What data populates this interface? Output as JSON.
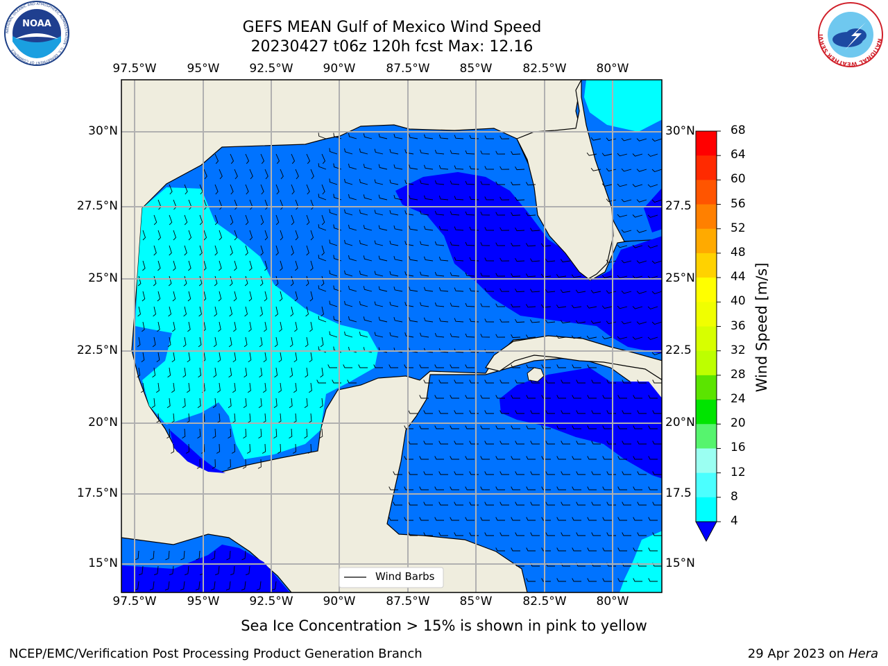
{
  "header": {
    "title_line1": "GEFS MEAN Gulf of Mexico Wind Speed",
    "title_line2": "20230427 t06z 120h fcst   Max: 12.16"
  },
  "logos": {
    "noaa_text": "NOAA",
    "noaa_ring_text": "NATIONAL OCEANIC AND ATMOSPHERIC ADMINISTRATION · U.S. DEPARTMENT OF COMMERCE",
    "nws_ring_text": "NATIONAL WEATHER SERVICE"
  },
  "map": {
    "lon_labels": [
      "97.5°W",
      "95°W",
      "92.5°W",
      "90°W",
      "87.5°W",
      "85°W",
      "82.5°W",
      "80°W"
    ],
    "lat_labels_left": [
      "30°N",
      "27.5°N",
      "25°N",
      "22.5°N",
      "20°N",
      "17.5°N",
      "15°N"
    ],
    "lat_labels_right": [
      "30°N",
      "27.5",
      "25°N",
      "22.5",
      "20°N",
      "17.5",
      "15°N"
    ],
    "legend_label": "Wind Barbs",
    "extent": {
      "lon_min": -98,
      "lon_max": -78.2,
      "lat_min": 14,
      "lat_max": 31.8
    },
    "colors": {
      "land": "#efedde",
      "speed_4_8": "#0073ff",
      "speed_8_12": "#00ffff",
      "speed_lt_4": "#0000ff",
      "gridline": "#b0b0b0"
    }
  },
  "colorbar": {
    "label": "Wind Speed [m/s]",
    "ticks": [
      "68",
      "64",
      "60",
      "56",
      "52",
      "48",
      "44",
      "40",
      "36",
      "32",
      "28",
      "24",
      "20",
      "16",
      "12",
      "8",
      "4"
    ],
    "colors": [
      "#ff0000",
      "#ff2a00",
      "#ff5500",
      "#ff8000",
      "#ffaa00",
      "#ffd200",
      "#ffff00",
      "#f0ff00",
      "#d7ff00",
      "#bdff00",
      "#5be400",
      "#00e400",
      "#56f46e",
      "#9bfff2",
      "#4bffff",
      "#00ffff",
      "#0073ff"
    ],
    "under_color": "#0000ff"
  },
  "note": "Sea Ice Concentration > 15% is shown in pink to yellow",
  "footer": {
    "left": "NCEP/EMC/Verification Post Processing Product Generation Branch",
    "date": "29 Apr 2023 on ",
    "machine": "Hera"
  }
}
